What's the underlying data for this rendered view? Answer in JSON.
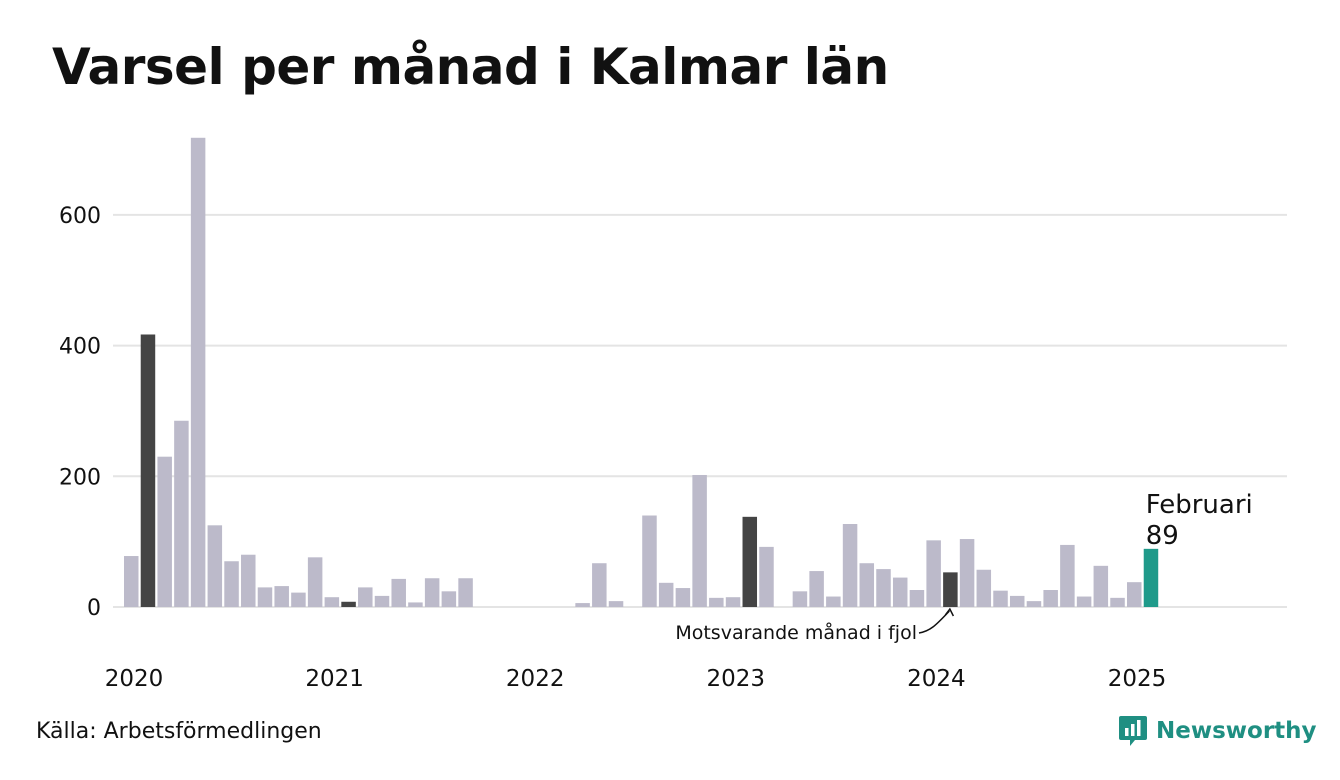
{
  "title": "Varsel per månad i Kalmar län",
  "source": "Källa: Arbetsförmedlingen",
  "brand": "Newsworthy",
  "colors": {
    "bar": "#bcbaca",
    "comparison": "#444444",
    "highlight": "#1f9a8a",
    "grid": "#e4e4e4",
    "text": "#111111",
    "brand": "#1f8f82"
  },
  "chart_data": {
    "type": "bar",
    "ylim": [
      0,
      720
    ],
    "yticks": [
      0,
      200,
      400,
      600
    ],
    "xticks": [
      "2020",
      "2021",
      "2022",
      "2023",
      "2024",
      "2025"
    ],
    "months": [
      "2020-01",
      "2020-02",
      "2020-03",
      "2020-04",
      "2020-05",
      "2020-06",
      "2020-07",
      "2020-08",
      "2020-09",
      "2020-10",
      "2020-11",
      "2020-12",
      "2021-01",
      "2021-02",
      "2021-03",
      "2021-04",
      "2021-05",
      "2021-06",
      "2021-07",
      "2021-08",
      "2021-09",
      "2021-10",
      "2021-11",
      "2021-12",
      "2022-01",
      "2022-02",
      "2022-03",
      "2022-04",
      "2022-05",
      "2022-06",
      "2022-07",
      "2022-08",
      "2022-09",
      "2022-10",
      "2022-11",
      "2022-12",
      "2023-01",
      "2023-02",
      "2023-03",
      "2023-04",
      "2023-05",
      "2023-06",
      "2023-07",
      "2023-08",
      "2023-09",
      "2023-10",
      "2023-11",
      "2023-12",
      "2024-01",
      "2024-02",
      "2024-03",
      "2024-04",
      "2024-05",
      "2024-06",
      "2024-07",
      "2024-08",
      "2024-09",
      "2024-10",
      "2024-11",
      "2024-12",
      "2025-01",
      "2025-02"
    ],
    "values": [
      78,
      417,
      230,
      285,
      718,
      125,
      70,
      80,
      30,
      32,
      22,
      76,
      15,
      8,
      30,
      17,
      43,
      7,
      44,
      24,
      44,
      0,
      0,
      0,
      0,
      0,
      0,
      6,
      67,
      9,
      0,
      140,
      37,
      29,
      202,
      14,
      15,
      138,
      92,
      0,
      24,
      55,
      16,
      127,
      67,
      58,
      45,
      26,
      102,
      53,
      104,
      57,
      25,
      17,
      9,
      26,
      95,
      16,
      63,
      14,
      38,
      89
    ],
    "comparison_months": [
      "2020-02",
      "2021-02",
      "2023-02",
      "2024-02"
    ],
    "highlight_month": "2025-02",
    "highlight_label": "Februari",
    "highlight_value": "89",
    "annotation": "Motsvarande månad i fjol"
  }
}
